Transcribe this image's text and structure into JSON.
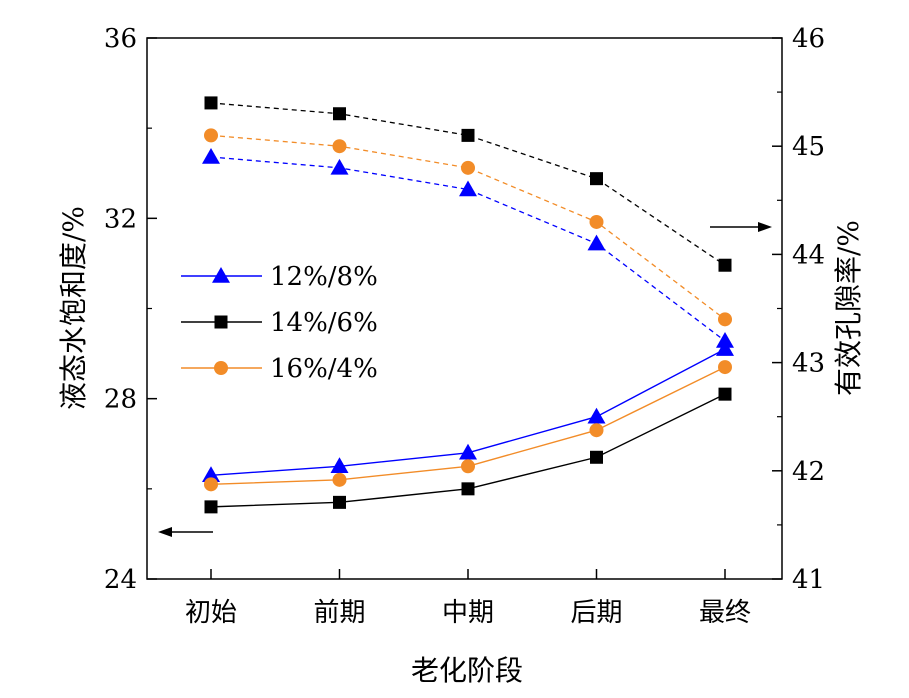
{
  "chart_data": {
    "type": "line",
    "xlabel": "老化阶段",
    "categories": [
      "初始",
      "前期",
      "中期",
      "后期",
      "最终"
    ],
    "left_axis": {
      "label": "液态水饱和度/%",
      "ylim": [
        24,
        36
      ],
      "ticks": [
        24,
        28,
        32,
        36
      ],
      "arrow": "left"
    },
    "right_axis": {
      "label": "有效孔隙率/%",
      "ylim": [
        41,
        46
      ],
      "ticks": [
        41,
        42,
        43,
        44,
        45,
        46
      ],
      "arrow": "right"
    },
    "legend_position": "middle-left",
    "series": [
      {
        "name": "12%/8%",
        "color": "#0000ff",
        "marker": "triangle",
        "saturation": [
          26.3,
          26.5,
          26.8,
          27.6,
          29.1
        ],
        "porosity": [
          44.9,
          44.8,
          44.6,
          44.1,
          43.2
        ]
      },
      {
        "name": "14%/6%",
        "color": "#000000",
        "marker": "square",
        "saturation": [
          25.6,
          25.7,
          26.0,
          26.7,
          28.1
        ],
        "porosity": [
          45.4,
          45.3,
          45.1,
          44.7,
          43.9
        ]
      },
      {
        "name": "16%/4%",
        "color": "#f28c28",
        "marker": "circle",
        "saturation": [
          26.1,
          26.2,
          26.5,
          27.3,
          28.7
        ],
        "porosity": [
          45.1,
          45.0,
          44.8,
          44.3,
          43.4
        ]
      }
    ]
  }
}
